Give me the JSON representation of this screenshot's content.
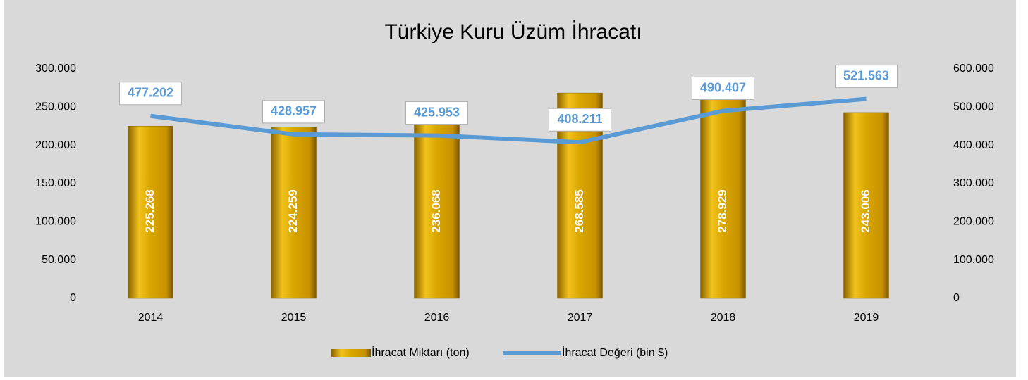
{
  "chart_data": {
    "type": "bar",
    "title": "Türkiye Kuru Üzüm İhracatı",
    "categories": [
      "2014",
      "2015",
      "2016",
      "2017",
      "2018",
      "2019"
    ],
    "series": [
      {
        "name": "İhracat Miktarı (ton)",
        "color": "#d4a000",
        "type": "bar",
        "values": [
          225268,
          224259,
          236068,
          268585,
          278929,
          243006
        ],
        "value_labels": [
          "225.268",
          "224.259",
          "236.068",
          "268.585",
          "278.929",
          "243.006"
        ]
      },
      {
        "name": "İhracat Değeri (bin $)",
        "color": "#5b9bd5",
        "type": "line",
        "axis": "y2",
        "values": [
          477202,
          428957,
          425953,
          408211,
          490407,
          521563
        ],
        "value_labels": [
          "477.202",
          "428.957",
          "425.953",
          "408.211",
          "490.407",
          "521.563"
        ]
      }
    ],
    "ylim": [
      0,
      300000
    ],
    "yticks": [
      0,
      {
        "value": 50000,
        "label": "50.000"
      },
      {
        "value": 100000,
        "label": "100.000"
      },
      {
        "value": 150000,
        "label": "150.000"
      },
      {
        "value": 200000,
        "label": "200.000"
      },
      {
        "value": 250000,
        "label": "250.000"
      },
      {
        "value": 300000,
        "label": "300.000"
      }
    ],
    "y2lim": [
      0,
      600000
    ],
    "y2ticks": [
      0,
      {
        "value": 100000,
        "label": "100.000"
      },
      {
        "value": 200000,
        "label": "200.000"
      },
      {
        "value": 300000,
        "label": "300.000"
      },
      {
        "value": 400000,
        "label": "400.000"
      },
      {
        "value": 500000,
        "label": "500.000"
      },
      {
        "value": 600000,
        "label": "600.000"
      }
    ],
    "legend": "bottom"
  }
}
